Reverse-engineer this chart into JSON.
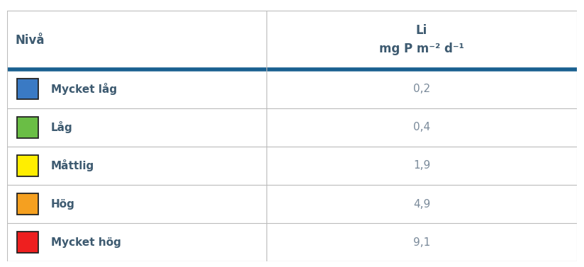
{
  "col1_header": "Nivå",
  "col2_header_line1": "Li",
  "col2_header_line2": "mg P m⁻² d⁻¹",
  "rows": [
    {
      "label": "Mycket låg",
      "value": "0,2",
      "color": "#3a7ac4"
    },
    {
      "label": "Låg",
      "value": "0,4",
      "color": "#6abe45"
    },
    {
      "label": "Måttlig",
      "value": "1,9",
      "color": "#ffee00"
    },
    {
      "label": "Hög",
      "value": "4,9",
      "color": "#f5a020"
    },
    {
      "label": "Mycket hög",
      "value": "9,1",
      "color": "#ee1f1f"
    }
  ],
  "header_line_color": "#1a6090",
  "grid_line_color": "#bbbbbb",
  "text_color": "#3d5a70",
  "bg_color": "#ffffff",
  "col_split": 0.455,
  "value_text_color": "#7a8a9a",
  "sq_edge_color": "#222222",
  "header_fontsize": 12,
  "row_fontsize": 11,
  "value_fontsize": 11
}
